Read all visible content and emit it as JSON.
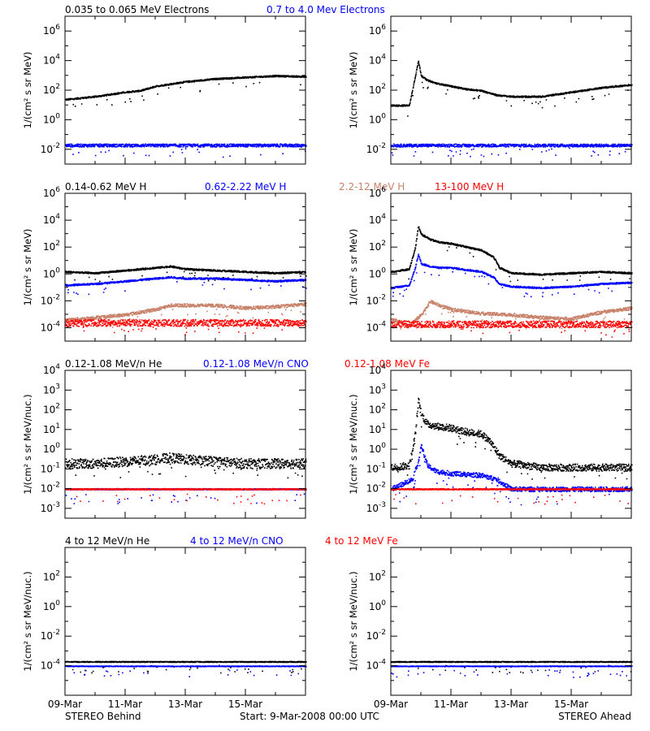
{
  "x_axis": {
    "ticks": [
      "09-Mar",
      "11-Mar",
      "13-Mar",
      "15-Mar"
    ],
    "range_days": [
      0,
      8
    ]
  },
  "footer": {
    "left": "STEREO Behind",
    "center": "Start:  9-Mar-2008 00:00 UTC",
    "right": "STEREO Ahead"
  },
  "colors": {
    "black": "#000000",
    "blue": "#0000ff",
    "tan": "#c8826a",
    "red": "#ff0000"
  },
  "chart_data": [
    {
      "type": "scatter",
      "row": "electrons",
      "labels": [
        {
          "text": "0.035 to 0.065 MeV Electrons",
          "color": "#000000"
        },
        {
          "text": "0.7 to 4.0 Mev Electrons",
          "color": "#0000ff"
        }
      ],
      "ylabel": "1/(cm² s sr MeV)",
      "log": true,
      "ylim_exp": [
        -3,
        7
      ],
      "ticks_exp": [
        -2,
        0,
        2,
        4,
        6
      ],
      "panels": [
        {
          "side": "STEREO Behind",
          "series": [
            {
              "color": "#000000",
              "x": [
                0,
                1,
                2,
                2.5,
                3,
                4,
                5,
                6,
                7,
                8
              ],
              "y_log": [
                1.4,
                1.6,
                1.9,
                2.0,
                2.3,
                2.6,
                2.8,
                2.9,
                3.0,
                2.95
              ],
              "noise": 0.05
            },
            {
              "color": "#0000ff",
              "x": [
                0,
                8
              ],
              "y_log": [
                -1.7,
                -1.7
              ],
              "noise": 0.1
            }
          ]
        },
        {
          "side": "STEREO Ahead",
          "series": [
            {
              "color": "#000000",
              "x": [
                0,
                0.6,
                0.75,
                0.9,
                1.0,
                1.2,
                1.5,
                2.0,
                2.5,
                3.0,
                3.5,
                4.0,
                5.0,
                6.0,
                7.0,
                8.0
              ],
              "y_log": [
                1.0,
                1.0,
                2.5,
                4.0,
                3.0,
                2.7,
                2.5,
                2.3,
                2.1,
                2.0,
                1.7,
                1.6,
                1.6,
                1.9,
                2.2,
                2.4
              ],
              "noise": 0.05
            },
            {
              "color": "#0000ff",
              "x": [
                0,
                8
              ],
              "y_log": [
                -1.7,
                -1.7
              ],
              "noise": 0.1
            }
          ]
        }
      ]
    },
    {
      "type": "scatter",
      "row": "protons",
      "labels": [
        {
          "text": "0.14-0.62 MeV H",
          "color": "#000000"
        },
        {
          "text": "0.62-2.22 MeV H",
          "color": "#0000ff"
        },
        {
          "text": "2.2-12 MeV H",
          "color": "#c8826a"
        },
        {
          "text": "13-100 MeV H",
          "color": "#ff0000"
        }
      ],
      "ylabel": "1/(cm² s sr MeV)",
      "log": true,
      "ylim_exp": [
        -5,
        6
      ],
      "ticks_exp": [
        -4,
        -2,
        0,
        2,
        4,
        6
      ],
      "panels": [
        {
          "side": "STEREO Behind",
          "series": [
            {
              "color": "#000000",
              "x": [
                0,
                1,
                2,
                3,
                3.5,
                4,
                5,
                6,
                7,
                8
              ],
              "y_log": [
                0.2,
                0.1,
                0.3,
                0.5,
                0.6,
                0.4,
                0.3,
                0.2,
                0.1,
                0.2
              ],
              "noise": 0.06
            },
            {
              "color": "#0000ff",
              "x": [
                0,
                1,
                2,
                3,
                3.5,
                4,
                5,
                6,
                7,
                8
              ],
              "y_log": [
                -0.8,
                -0.7,
                -0.5,
                -0.3,
                -0.2,
                -0.3,
                -0.3,
                -0.4,
                -0.5,
                -0.4
              ],
              "noise": 0.06
            },
            {
              "color": "#c8826a",
              "x": [
                0,
                1,
                2,
                3,
                3.5,
                4,
                5,
                6,
                7,
                8
              ],
              "y_log": [
                -3.4,
                -3.2,
                -3.0,
                -2.6,
                -2.3,
                -2.3,
                -2.3,
                -2.5,
                -2.4,
                -2.2
              ],
              "noise": 0.12
            },
            {
              "color": "#ff0000",
              "x": [
                0,
                8
              ],
              "y_log": [
                -3.6,
                -3.6
              ],
              "noise": 0.25
            }
          ]
        },
        {
          "side": "STEREO Ahead",
          "series": [
            {
              "color": "#000000",
              "x": [
                0,
                0.6,
                0.8,
                0.9,
                1.0,
                1.3,
                1.6,
                2.0,
                3.0,
                3.4,
                3.6,
                4.0,
                5.0,
                6.0,
                7.0,
                8.0
              ],
              "y_log": [
                0.2,
                0.4,
                2.0,
                3.6,
                3.0,
                2.6,
                2.4,
                2.3,
                1.8,
                1.3,
                0.5,
                0.1,
                0.0,
                0.1,
                0.2,
                0.1
              ],
              "noise": 0.06
            },
            {
              "color": "#0000ff",
              "x": [
                0,
                0.6,
                0.8,
                0.9,
                1.0,
                1.3,
                1.6,
                2.0,
                3.0,
                3.4,
                3.6,
                4.0,
                5.0,
                6.0,
                7.0,
                8.0
              ],
              "y_log": [
                -1.0,
                -0.8,
                0.5,
                1.5,
                0.8,
                0.6,
                0.5,
                0.5,
                0.2,
                -0.2,
                -0.7,
                -0.9,
                -1.0,
                -0.9,
                -0.7,
                -0.6
              ],
              "noise": 0.06
            },
            {
              "color": "#c8826a",
              "x": [
                0,
                0.6,
                1.0,
                1.3,
                1.6,
                2.0,
                3.0,
                4.0,
                5.0,
                6.0,
                7.0,
                8.0
              ],
              "y_log": [
                -3.3,
                -3.8,
                -3.0,
                -2.0,
                -2.3,
                -2.6,
                -2.9,
                -3.0,
                -3.2,
                -3.3,
                -2.8,
                -2.5
              ],
              "noise": 0.12
            },
            {
              "color": "#ff0000",
              "x": [
                0,
                8
              ],
              "y_log": [
                -3.7,
                -3.7
              ],
              "noise": 0.25
            }
          ]
        }
      ]
    },
    {
      "type": "scatter",
      "row": "heavy ions",
      "labels": [
        {
          "text": "0.12-1.08 MeV/n He",
          "color": "#000000"
        },
        {
          "text": "0.12-1.08 MeV/n CNO",
          "color": "#0000ff"
        },
        {
          "text": "0.12-1.08 MeV Fe",
          "color": "#ff0000"
        }
      ],
      "ylabel": "1/(cm² s sr MeV/nuc.)",
      "log": true,
      "ylim_exp": [
        -3.5,
        4
      ],
      "ticks_exp": [
        -3,
        -2,
        -1,
        0,
        1,
        2,
        3,
        4
      ],
      "panels": [
        {
          "side": "STEREO Behind",
          "series": [
            {
              "color": "#000000",
              "x": [
                0,
                1,
                2,
                3,
                3.5,
                4,
                5,
                6,
                7,
                8
              ],
              "y_log": [
                -0.7,
                -0.7,
                -0.6,
                -0.5,
                -0.4,
                -0.5,
                -0.6,
                -0.7,
                -0.7,
                -0.7
              ],
              "noise": 0.25
            },
            {
              "color": "#0000ff",
              "x": [
                0,
                8
              ],
              "y_log": [
                -2.0,
                -2.0
              ],
              "noise": 0.03
            },
            {
              "color": "#ff0000",
              "x": [
                0,
                8
              ],
              "y_log": [
                -2.0,
                -2.0
              ],
              "noise": 0.03
            }
          ]
        },
        {
          "side": "STEREO Ahead",
          "series": [
            {
              "color": "#000000",
              "x": [
                0,
                0.6,
                0.8,
                0.9,
                1.0,
                1.2,
                1.5,
                2.0,
                2.5,
                3.0,
                3.3,
                3.6,
                4.0,
                5.0,
                6.0,
                7.0,
                8.0
              ],
              "y_log": [
                -0.9,
                -0.8,
                0.8,
                2.5,
                1.8,
                1.3,
                1.2,
                1.1,
                0.9,
                0.8,
                0.4,
                -0.3,
                -0.7,
                -0.9,
                -0.9,
                -0.9,
                -0.9
              ],
              "noise": 0.18
            },
            {
              "color": "#0000ff",
              "x": [
                0,
                0.7,
                0.9,
                1.0,
                1.2,
                1.5,
                2.0,
                3.0,
                3.5,
                4.0,
                5.0,
                6.0,
                7.0,
                8.0
              ],
              "y_log": [
                -2.0,
                -1.5,
                -0.6,
                0.2,
                -0.8,
                -1.1,
                -1.2,
                -1.3,
                -1.5,
                -2.0,
                -2.0,
                -2.0,
                -2.0,
                -2.0
              ],
              "noise": 0.12
            },
            {
              "color": "#ff0000",
              "x": [
                0,
                8
              ],
              "y_log": [
                -2.0,
                -2.0
              ],
              "noise": 0.03
            }
          ]
        }
      ]
    },
    {
      "type": "scatter",
      "row": "high-energy ions",
      "labels": [
        {
          "text": "4 to 12 MeV/n He",
          "color": "#000000"
        },
        {
          "text": "4 to 12 MeV/n CNO",
          "color": "#0000ff"
        },
        {
          "text": "4 to 12 MeV Fe",
          "color": "#ff0000"
        }
      ],
      "ylabel": "1/(cm² s sr MeV/nuc.)",
      "log": true,
      "ylim_exp": [
        -6,
        4
      ],
      "ticks_exp": [
        -4,
        -2,
        0,
        2
      ],
      "panels": [
        {
          "side": "STEREO Behind",
          "series": [
            {
              "color": "#000000",
              "x": [
                0,
                8
              ],
              "y_log": [
                -3.7,
                -3.7
              ],
              "noise": 0.03
            },
            {
              "color": "#0000ff",
              "x": [
                0,
                8
              ],
              "y_log": [
                -4.0,
                -4.0
              ],
              "noise": 0.02
            }
          ]
        },
        {
          "side": "STEREO Ahead",
          "series": [
            {
              "color": "#000000",
              "x": [
                0,
                8
              ],
              "y_log": [
                -3.7,
                -3.7
              ],
              "noise": 0.03
            },
            {
              "color": "#0000ff",
              "x": [
                0,
                8
              ],
              "y_log": [
                -4.0,
                -4.0
              ],
              "noise": 0.02
            }
          ]
        }
      ]
    }
  ]
}
